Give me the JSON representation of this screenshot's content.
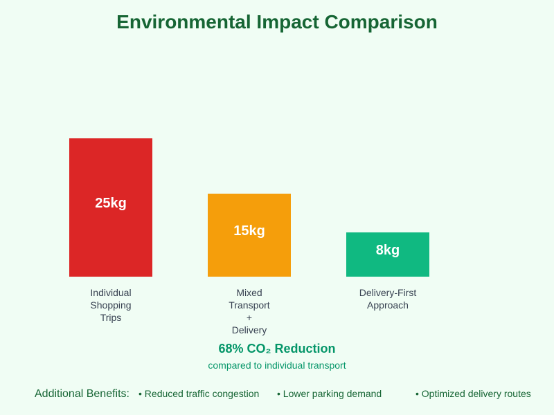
{
  "chart_data": {
    "type": "bar",
    "title": "Environmental Impact Comparison",
    "categories": [
      [
        "Individual",
        "Shopping",
        "Trips"
      ],
      [
        "Mixed",
        "Transport",
        "+",
        "Delivery"
      ],
      [
        "Delivery-First",
        "Approach"
      ]
    ],
    "values": [
      25,
      15,
      8
    ],
    "unit": "kg",
    "value_labels": [
      "25kg",
      "15kg",
      "8kg"
    ],
    "colors": [
      "#dc2626",
      "#f59e0b",
      "#10b981"
    ],
    "ylim": [
      0,
      25
    ],
    "grid": false
  },
  "summary": {
    "headline": "68% CO₂ Reduction",
    "subtext": "compared to individual transport"
  },
  "benefits": {
    "heading": "Additional Benefits:",
    "items": [
      "• Reduced traffic congestion",
      "• Lower parking demand",
      "• Optimized delivery routes"
    ]
  }
}
